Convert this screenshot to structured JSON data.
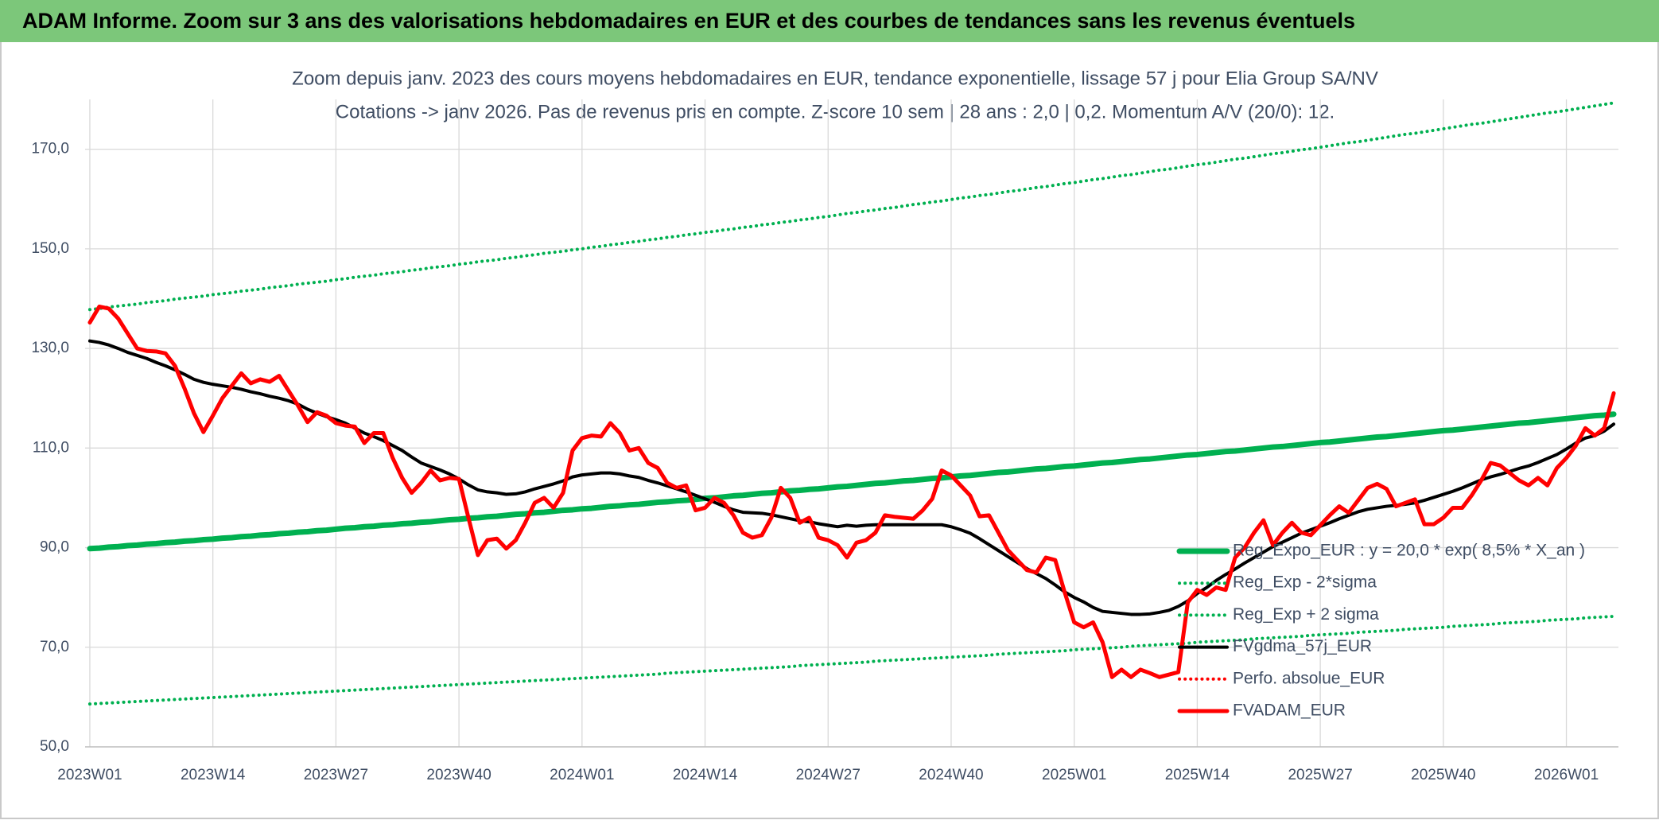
{
  "chart_data": {
    "type": "line",
    "title": "ADAM Informe. Zoom sur 3 ans des valorisations hebdomadaires en EUR et des courbes de tendances sans les revenus éventuels",
    "subtitle": [
      "Zoom depuis janv. 2023 des cours moyens hebdomadaires en EUR, tendance exponentielle, lissage 57 j pour Elia Group SA/NV",
      "Cotations -> janv 2026. Pas de revenus pris en compte. Z-score 10 sem | 28 ans : 2,0 | 0,2. Momentum A/V (20/0): 12."
    ],
    "categories": [
      "2023W01",
      null,
      null,
      null,
      null,
      null,
      null,
      null,
      null,
      null,
      null,
      null,
      null,
      "2023W14",
      null,
      null,
      null,
      null,
      null,
      null,
      null,
      null,
      null,
      null,
      null,
      null,
      "2023W27",
      null,
      null,
      null,
      null,
      null,
      null,
      null,
      null,
      null,
      null,
      null,
      null,
      "2023W40",
      null,
      null,
      null,
      null,
      null,
      null,
      null,
      null,
      null,
      null,
      null,
      null,
      "2024W01",
      null,
      null,
      null,
      null,
      null,
      null,
      null,
      null,
      null,
      null,
      null,
      null,
      "2024W14",
      null,
      null,
      null,
      null,
      null,
      null,
      null,
      null,
      null,
      null,
      null,
      null,
      "2024W27",
      null,
      null,
      null,
      null,
      null,
      null,
      null,
      null,
      null,
      null,
      null,
      null,
      "2024W40",
      null,
      null,
      null,
      null,
      null,
      null,
      null,
      null,
      null,
      null,
      null,
      null,
      "2025W01",
      null,
      null,
      null,
      null,
      null,
      null,
      null,
      null,
      null,
      null,
      null,
      null,
      "2025W14",
      null,
      null,
      null,
      null,
      null,
      null,
      null,
      null,
      null,
      null,
      null,
      null,
      "2025W27",
      null,
      null,
      null,
      null,
      null,
      null,
      null,
      null,
      null,
      null,
      null,
      null,
      "2025W40",
      null,
      null,
      null,
      null,
      null,
      null,
      null,
      null,
      null,
      null,
      null,
      null,
      "2026W01",
      null,
      null,
      null,
      null,
      null
    ],
    "ylim": [
      50,
      180
    ],
    "yticks": [
      {
        "value": 50,
        "label": "50,0"
      },
      {
        "value": 70,
        "label": "70,0"
      },
      {
        "value": 90,
        "label": "90,0"
      },
      {
        "value": 110,
        "label": "110,0"
      },
      {
        "value": 130,
        "label": "130,0"
      },
      {
        "value": 150,
        "label": "150,0"
      },
      {
        "value": 170,
        "label": "170,0"
      }
    ],
    "grid": true,
    "legend": "lower right",
    "series": [
      {
        "name": "Reg_Expo_EUR : y = 20,0 * exp( 8,5% *  X_an )",
        "color": "#00b050",
        "style": "solid",
        "values": [
          89.8,
          89.9,
          90.1,
          90.2,
          90.4,
          90.5,
          90.7,
          90.8,
          91.0,
          91.1,
          91.3,
          91.4,
          91.6,
          91.7,
          91.9,
          92.0,
          92.2,
          92.3,
          92.5,
          92.6,
          92.8,
          92.9,
          93.1,
          93.2,
          93.4,
          93.5,
          93.7,
          93.9,
          94.0,
          94.2,
          94.3,
          94.5,
          94.6,
          94.8,
          94.9,
          95.1,
          95.2,
          95.4,
          95.6,
          95.7,
          95.9,
          96.0,
          96.2,
          96.3,
          96.5,
          96.7,
          96.8,
          97.0,
          97.1,
          97.3,
          97.5,
          97.6,
          97.8,
          97.9,
          98.1,
          98.3,
          98.4,
          98.6,
          98.7,
          98.9,
          99.1,
          99.2,
          99.4,
          99.5,
          99.7,
          99.9,
          100.0,
          100.2,
          100.4,
          100.5,
          100.7,
          100.9,
          101.0,
          101.2,
          101.4,
          101.5,
          101.7,
          101.8,
          102.0,
          102.2,
          102.3,
          102.5,
          102.7,
          102.9,
          103.0,
          103.2,
          103.4,
          103.5,
          103.7,
          103.9,
          104.0,
          104.2,
          104.4,
          104.5,
          104.7,
          104.9,
          105.1,
          105.2,
          105.4,
          105.6,
          105.8,
          105.9,
          106.1,
          106.3,
          106.4,
          106.6,
          106.8,
          107.0,
          107.1,
          107.3,
          107.5,
          107.7,
          107.8,
          108.0,
          108.2,
          108.4,
          108.6,
          108.7,
          108.9,
          109.1,
          109.3,
          109.4,
          109.6,
          109.8,
          110.0,
          110.2,
          110.3,
          110.5,
          110.7,
          110.9,
          111.1,
          111.2,
          111.4,
          111.6,
          111.8,
          112.0,
          112.2,
          112.3,
          112.5,
          112.7,
          112.9,
          113.1,
          113.3,
          113.5,
          113.6,
          113.8,
          114.0,
          114.2,
          114.4,
          114.6,
          114.8,
          115.0,
          115.1,
          115.3,
          115.5,
          115.7,
          115.9,
          116.1,
          116.3,
          116.5,
          116.6,
          116.8
        ]
      },
      {
        "name": "Reg_Exp - 2*sigma",
        "color": "#00b050",
        "style": "dotted",
        "values": [
          58.6,
          58.7,
          58.8,
          58.9,
          59.0,
          59.1,
          59.2,
          59.3,
          59.4,
          59.5,
          59.6,
          59.7,
          59.8,
          59.9,
          60.0,
          60.1,
          60.2,
          60.3,
          60.4,
          60.5,
          60.6,
          60.7,
          60.8,
          60.9,
          61.0,
          61.1,
          61.2,
          61.3,
          61.4,
          61.5,
          61.6,
          61.7,
          61.8,
          61.9,
          62.0,
          62.1,
          62.2,
          62.3,
          62.4,
          62.5,
          62.6,
          62.7,
          62.8,
          62.9,
          63.0,
          63.1,
          63.2,
          63.3,
          63.4,
          63.5,
          63.6,
          63.7,
          63.8,
          63.9,
          64.0,
          64.1,
          64.2,
          64.3,
          64.4,
          64.5,
          64.6,
          64.8,
          64.9,
          65.0,
          65.1,
          65.2,
          65.3,
          65.4,
          65.5,
          65.6,
          65.7,
          65.8,
          65.9,
          66.0,
          66.1,
          66.3,
          66.4,
          66.5,
          66.6,
          66.7,
          66.8,
          66.9,
          67.0,
          67.2,
          67.3,
          67.4,
          67.5,
          67.6,
          67.7,
          67.8,
          67.9,
          68.0,
          68.1,
          68.2,
          68.3,
          68.4,
          68.6,
          68.7,
          68.8,
          68.9,
          69.0,
          69.1,
          69.2,
          69.3,
          69.5,
          69.6,
          69.7,
          69.8,
          69.9,
          70.0,
          70.2,
          70.3,
          70.4,
          70.5,
          70.6,
          70.7,
          70.8,
          71.0,
          71.1,
          71.2,
          71.3,
          71.4,
          71.5,
          71.7,
          71.8,
          71.9,
          72.0,
          72.1,
          72.2,
          72.4,
          72.5,
          72.6,
          72.7,
          72.8,
          73.0,
          73.1,
          73.2,
          73.3,
          73.4,
          73.6,
          73.7,
          73.8,
          73.9,
          74.0,
          74.2,
          74.3,
          74.4,
          74.5,
          74.6,
          74.8,
          74.9,
          75.0,
          75.1,
          75.2,
          75.4,
          75.5,
          75.6,
          75.7,
          75.9,
          76.0,
          76.1,
          76.2
        ]
      },
      {
        "name": "Reg_Exp + 2 sigma",
        "color": "#00b050",
        "style": "dotted",
        "values": [
          137.8,
          138.0,
          138.3,
          138.5,
          138.7,
          138.9,
          139.2,
          139.4,
          139.6,
          139.9,
          140.1,
          140.3,
          140.5,
          140.8,
          141.0,
          141.2,
          141.5,
          141.7,
          141.9,
          142.2,
          142.4,
          142.6,
          142.9,
          143.1,
          143.3,
          143.5,
          143.8,
          144.0,
          144.3,
          144.5,
          144.7,
          145.0,
          145.2,
          145.4,
          145.7,
          145.9,
          146.2,
          146.4,
          146.6,
          146.9,
          147.1,
          147.4,
          147.6,
          147.8,
          148.1,
          148.3,
          148.6,
          148.8,
          149.1,
          149.3,
          149.5,
          149.8,
          150.0,
          150.3,
          150.5,
          150.8,
          151.0,
          151.3,
          151.5,
          151.8,
          152.0,
          152.3,
          152.5,
          152.8,
          153.0,
          153.3,
          153.5,
          153.8,
          154.0,
          154.3,
          154.5,
          154.8,
          155.0,
          155.3,
          155.5,
          155.8,
          156.0,
          156.3,
          156.5,
          156.8,
          157.1,
          157.3,
          157.6,
          157.8,
          158.1,
          158.3,
          158.6,
          158.9,
          159.1,
          159.4,
          159.6,
          159.9,
          160.2,
          160.4,
          160.7,
          160.9,
          161.2,
          161.5,
          161.7,
          162.0,
          162.3,
          162.5,
          162.8,
          163.1,
          163.3,
          163.6,
          163.9,
          164.1,
          164.4,
          164.7,
          164.9,
          165.2,
          165.5,
          165.8,
          166.0,
          166.3,
          166.6,
          166.9,
          167.1,
          167.4,
          167.7,
          168.0,
          168.2,
          168.5,
          168.8,
          169.1,
          169.3,
          169.6,
          169.9,
          170.1,
          170.4,
          170.7,
          171.0,
          171.3,
          171.5,
          171.8,
          172.1,
          172.4,
          172.7,
          173.0,
          173.2,
          173.5,
          173.8,
          174.1,
          174.4,
          174.7,
          175.0,
          175.2,
          175.5,
          175.8,
          176.1,
          176.4,
          176.7,
          177.0,
          177.3,
          177.5,
          177.8,
          178.1,
          178.4,
          178.7,
          179.0,
          179.3
        ]
      },
      {
        "name": "FVgdma_57j_EUR",
        "color": "#000000",
        "style": "solid",
        "values": [
          131.5,
          131.2,
          130.7,
          130,
          129.2,
          128.6,
          128,
          127.2,
          126.5,
          125.7,
          124.8,
          123.8,
          123.2,
          122.8,
          122.5,
          122.2,
          121.8,
          121.3,
          120.9,
          120.4,
          120,
          119.5,
          118.8,
          117.8,
          117,
          116.3,
          115.7,
          115,
          114,
          113,
          112.3,
          111.5,
          110.5,
          109.5,
          108.2,
          107,
          106.3,
          105.6,
          104.8,
          103.8,
          102.6,
          101.6,
          101.2,
          101,
          100.7,
          100.8,
          101.2,
          101.8,
          102.3,
          102.8,
          103.4,
          104.2,
          104.6,
          104.8,
          105,
          105,
          104.8,
          104.4,
          104.1,
          103.5,
          103,
          102.4,
          101.8,
          101.2,
          100.5,
          99.8,
          99.1,
          98.3,
          97.6,
          97.1,
          97,
          96.9,
          96.6,
          96.2,
          95.8,
          95.4,
          95.2,
          94.8,
          94.5,
          94.2,
          94.5,
          94.3,
          94.5,
          94.6,
          94.6,
          94.6,
          94.6,
          94.6,
          94.6,
          94.6,
          94.6,
          94.2,
          93.6,
          92.9,
          91.8,
          90.6,
          89.4,
          88.2,
          87,
          85.8,
          84.8,
          83.8,
          82.5,
          81.1,
          80,
          79.1,
          78,
          77.2,
          77,
          76.8,
          76.6,
          76.6,
          76.7,
          77,
          77.4,
          78.2,
          79.3,
          80.8,
          82,
          83.4,
          84.6,
          85.7,
          86.9,
          88,
          89.1,
          90.2,
          91.1,
          92,
          92.9,
          93.6,
          94.3,
          95,
          95.8,
          96.5,
          97.2,
          97.7,
          98,
          98.3,
          98.5,
          98.7,
          99,
          99.5,
          100.1,
          100.7,
          101.3,
          102,
          102.8,
          103.6,
          104.2,
          104.7,
          105.3,
          105.9,
          106.4,
          107.1,
          107.9,
          108.7,
          109.8,
          111,
          112,
          112.5,
          113.4,
          114.8
        ]
      },
      {
        "name": "Perfo. absolue_EUR",
        "color": "#ff0000",
        "style": "dotted",
        "values": [
          null,
          null,
          null,
          null,
          null,
          null,
          null,
          null,
          null,
          null,
          null,
          null,
          null,
          null,
          null,
          null,
          null,
          null,
          null,
          null,
          null,
          null,
          null,
          null,
          null,
          null,
          null,
          null,
          null,
          null,
          null,
          null,
          null,
          null,
          null,
          null,
          null,
          null,
          null,
          null,
          null,
          null,
          null,
          null,
          null,
          null,
          null,
          null,
          null,
          null,
          null,
          null,
          null,
          null,
          null,
          null,
          null,
          null,
          null,
          null,
          null,
          null,
          null,
          null,
          null,
          null,
          null,
          null,
          null,
          null,
          null,
          null,
          null,
          null,
          null,
          null,
          null,
          null,
          null,
          null,
          null,
          null,
          null,
          null,
          null,
          null,
          null,
          null,
          null,
          null,
          null,
          null,
          null,
          null,
          null,
          null,
          null,
          null,
          null,
          null,
          null,
          null,
          null,
          null,
          null,
          null,
          null,
          null,
          null,
          null,
          null,
          null,
          null,
          null,
          null,
          null,
          null,
          null,
          null,
          null,
          null,
          null,
          null,
          null,
          null,
          null,
          null,
          null,
          null,
          null,
          null,
          null,
          null,
          null,
          null,
          null,
          null,
          null,
          null,
          null,
          null,
          null,
          null,
          null,
          null,
          null,
          null,
          null,
          null,
          null,
          null,
          null,
          null,
          null,
          null,
          null,
          null,
          null,
          null,
          null,
          null,
          null
        ]
      },
      {
        "name": "FVADAM_EUR",
        "color": "#ff0000",
        "style": "solid",
        "values": [
          135.2,
          138.4,
          138,
          136,
          133,
          130,
          129.5,
          129.4,
          129,
          126.5,
          122,
          117,
          113.2,
          116.5,
          120,
          122.5,
          125,
          123,
          123.8,
          123.3,
          124.5,
          121.5,
          118.5,
          115.2,
          117.2,
          116.5,
          115,
          114.5,
          114.3,
          111,
          113,
          113,
          108,
          104,
          101,
          103,
          105.5,
          103.5,
          104,
          103.8,
          96,
          88.5,
          91.5,
          91.8,
          89.8,
          91.5,
          95,
          99,
          100,
          98,
          101,
          109.5,
          112,
          112.5,
          112.3,
          115,
          113,
          109.5,
          110,
          107,
          106,
          103,
          102,
          102.5,
          97.5,
          98,
          100,
          99,
          96.5,
          93,
          92,
          92.5,
          96,
          102,
          100,
          95,
          96,
          92,
          91.5,
          90.5,
          88,
          91,
          91.5,
          93,
          96.5,
          96.2,
          96,
          95.8,
          97.5,
          99.8,
          105.5,
          104.5,
          102.5,
          100.5,
          96.3,
          96.5,
          93,
          89.5,
          87.5,
          85.5,
          85,
          88,
          87.5,
          81,
          75,
          74,
          75,
          71,
          64,
          65.5,
          64,
          65.5,
          64.8,
          64,
          64.5,
          65,
          79,
          81.5,
          80.5,
          82,
          81.5,
          88,
          90,
          93,
          95.5,
          90.5,
          93,
          95,
          93,
          92.5,
          94.5,
          96.5,
          98.3,
          97,
          99.5,
          102,
          102.8,
          101.8,
          98.3,
          99,
          99.7,
          94.7,
          94.7,
          96,
          98,
          98,
          100.5,
          103.5,
          107,
          106.5,
          105,
          103.5,
          102.5,
          104,
          102.5,
          106,
          108,
          110.5,
          114,
          112.5,
          114,
          121
        ]
      }
    ]
  }
}
